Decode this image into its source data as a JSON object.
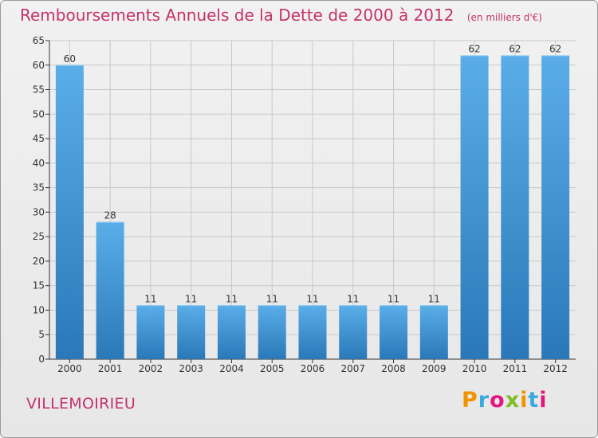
{
  "header": {
    "title": "Remboursements Annuels de la Dette de 2000 à 2012",
    "subtitle": "(en milliers d'€)"
  },
  "footer": {
    "city": "VILLEMOIRIEU",
    "logo_text": "Proxiti",
    "logo_colors": [
      "#f29400",
      "#3aa9df",
      "#e3177d",
      "#82bc24",
      "#f29400",
      "#3aa9df",
      "#e3177d"
    ]
  },
  "colors": {
    "title": "#c3336b",
    "bar_light": "#5aaee8",
    "bar_dark": "#2a78b8",
    "grid": "#c8c8c8",
    "axis": "#333333"
  },
  "chart_data": {
    "type": "bar",
    "title": "Remboursements Annuels de la Dette de 2000 à 2012",
    "subtitle": "(en milliers d'€)",
    "categories": [
      "2000",
      "2001",
      "2002",
      "2003",
      "2004",
      "2005",
      "2006",
      "2007",
      "2008",
      "2009",
      "2010",
      "2011",
      "2012"
    ],
    "values": [
      60,
      28,
      11,
      11,
      11,
      11,
      11,
      11,
      11,
      11,
      62,
      62,
      62
    ],
    "ylim": [
      0,
      65
    ],
    "yticks": [
      0,
      5,
      10,
      15,
      20,
      25,
      30,
      35,
      40,
      45,
      50,
      55,
      60,
      65
    ],
    "grid": true,
    "xlabel": "",
    "ylabel": ""
  }
}
